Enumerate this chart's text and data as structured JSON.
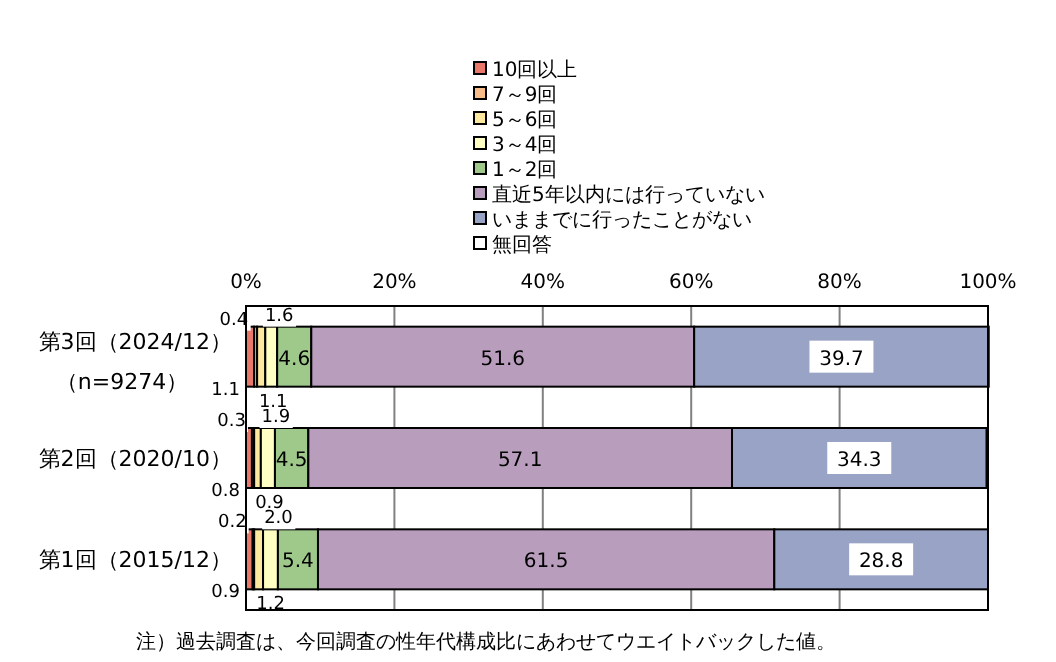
{
  "chart_data": {
    "type": "bar",
    "orientation": "horizontal",
    "stacked": true,
    "categories": [
      "第3回（2024/12）（n=9274）",
      "第2回（2020/10）",
      "第1回（2015/12）"
    ],
    "series": [
      {
        "name": "10回以上",
        "color": "#e8786a",
        "values": [
          1.1,
          0.8,
          0.9
        ]
      },
      {
        "name": "7～9回",
        "color": "#f8bc88",
        "values": [
          0.4,
          0.3,
          0.2
        ]
      },
      {
        "name": "5～6回",
        "color": "#fde8a0",
        "values": [
          1.1,
          0.9,
          1.2
        ]
      },
      {
        "name": "3～4回",
        "color": "#ffffc4",
        "values": [
          1.6,
          1.9,
          2.0
        ],
        "value_labels": [
          "1.6",
          "1.9",
          "2.0"
        ]
      },
      {
        "name": "1～2回",
        "color": "#9fc98a",
        "values": [
          4.6,
          4.5,
          5.4
        ]
      },
      {
        "name": "直近5年以内には行っていない",
        "color": "#b99dbd",
        "values": [
          51.6,
          57.1,
          61.5
        ]
      },
      {
        "name": "いままでに行ったことがない",
        "color": "#98a3c6",
        "values": [
          39.7,
          34.3,
          28.8
        ]
      },
      {
        "name": "無回答",
        "color": "#ffffff",
        "values": [
          null,
          null,
          null
        ]
      }
    ],
    "xlim": [
      0,
      100
    ],
    "xticks": [
      {
        "value": 0,
        "label": "0%"
      },
      {
        "value": 20,
        "label": "20%"
      },
      {
        "value": 40,
        "label": "40%"
      },
      {
        "value": 60,
        "label": "60%"
      },
      {
        "value": 80,
        "label": "80%"
      },
      {
        "value": 100,
        "label": "100%"
      }
    ],
    "grid": "x",
    "legend": "top",
    "data_labels": true,
    "annotations": [
      "注）過去調査は、今回調査の性年代構成比にあわせてウエイトバックした値。"
    ]
  }
}
